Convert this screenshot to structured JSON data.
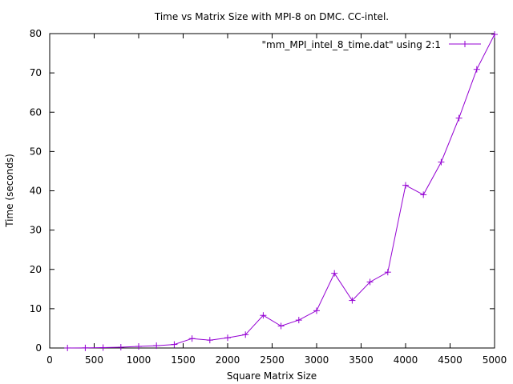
{
  "chart_data": {
    "type": "line",
    "title": "Time vs Matrix Size with MPI-8 on DMC. CC-intel.",
    "xlabel": "Square Matrix Size",
    "ylabel": "Time (seconds)",
    "xlim": [
      0,
      5000
    ],
    "ylim": [
      0,
      80
    ],
    "xticks": [
      0,
      500,
      1000,
      1500,
      2000,
      2500,
      3000,
      3500,
      4000,
      4500,
      5000
    ],
    "yticks": [
      0,
      10,
      20,
      30,
      40,
      50,
      60,
      70,
      80
    ],
    "grid": false,
    "legend_position": "top-right",
    "series": [
      {
        "name": "\"mm_MPI_intel_8_time.dat\" using 2:1",
        "color": "#9400d3",
        "marker": "plus",
        "x": [
          200,
          400,
          600,
          800,
          1000,
          1200,
          1400,
          1600,
          1800,
          2000,
          2200,
          2400,
          2600,
          2800,
          3000,
          3200,
          3400,
          3600,
          3800,
          4000,
          4200,
          4400,
          4600,
          4800,
          5000
        ],
        "y": [
          0.01,
          0.03,
          0.1,
          0.2,
          0.4,
          0.6,
          0.9,
          2.4,
          2.0,
          2.6,
          3.4,
          8.3,
          5.6,
          7.1,
          9.5,
          19.0,
          12.1,
          16.8,
          19.3,
          41.4,
          39.0,
          47.3,
          58.5,
          70.9,
          79.8
        ]
      }
    ]
  }
}
